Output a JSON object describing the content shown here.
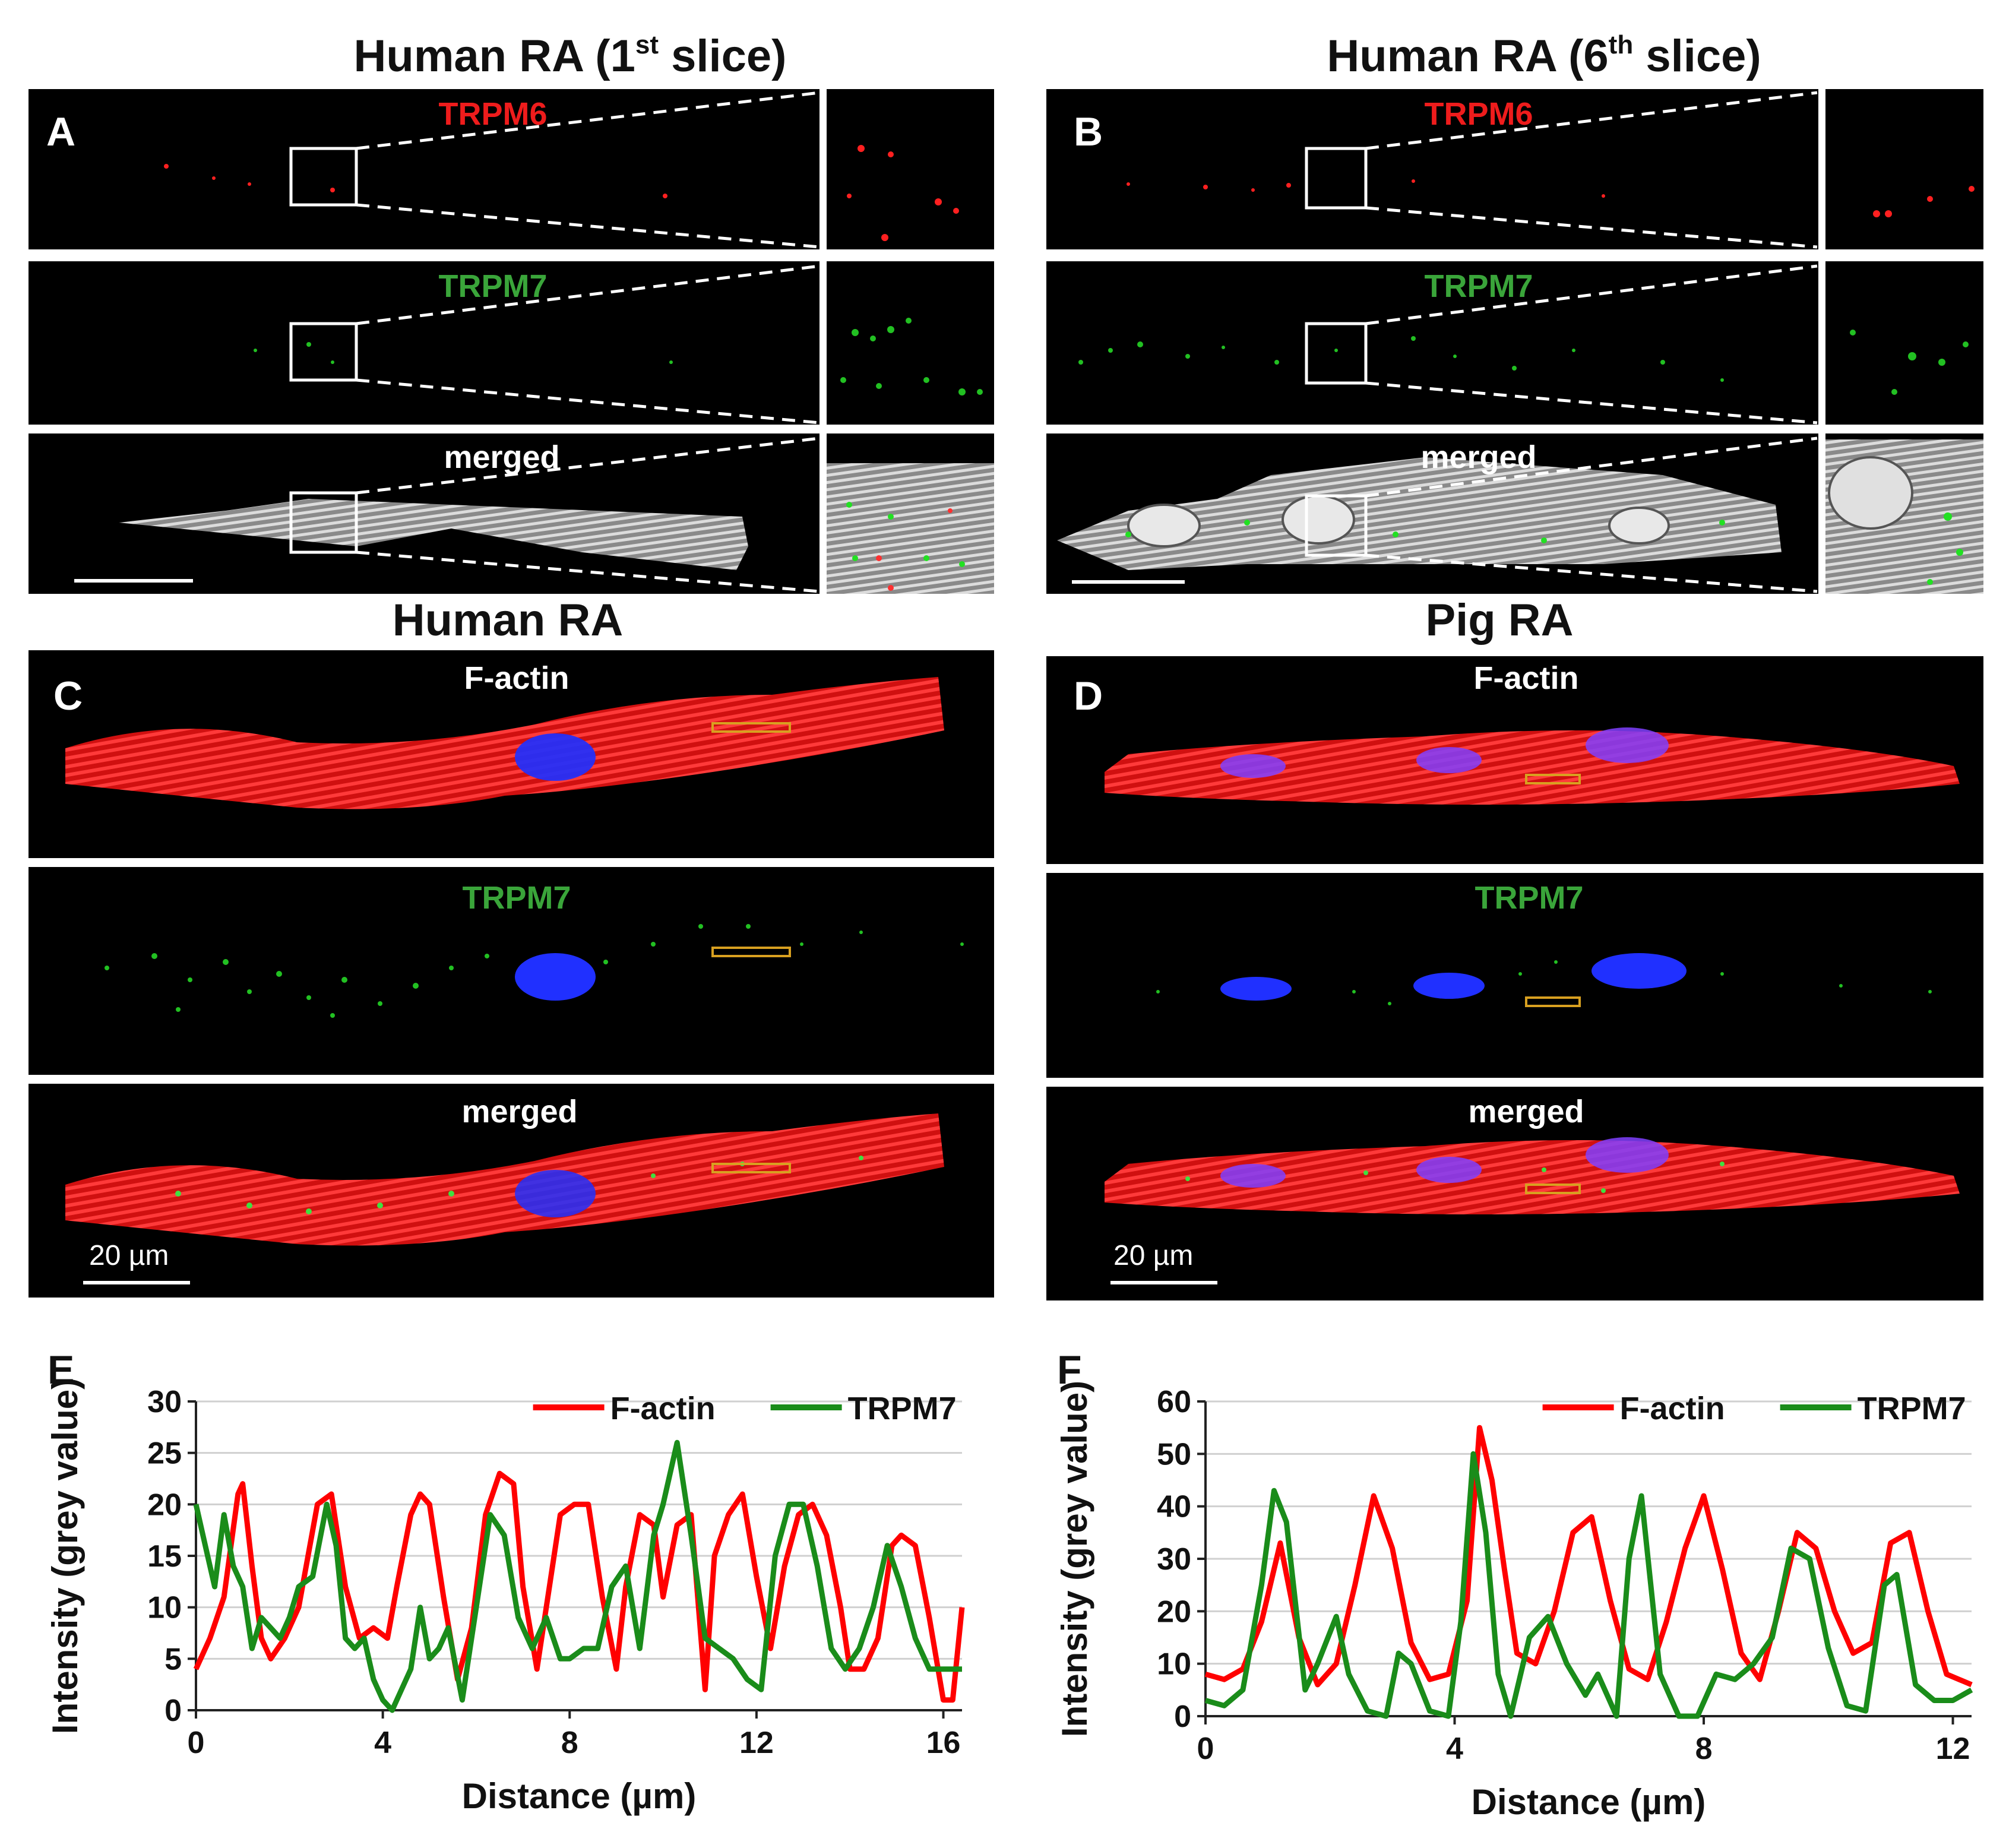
{
  "panelA": {
    "letter": "A",
    "title_main": "Human RA (1",
    "title_sup": "st",
    "title_end": " slice)",
    "row_labels": [
      "TRPM6",
      "TRPM7",
      "merged"
    ]
  },
  "panelB": {
    "letter": "B",
    "title_main": "Human RA (6",
    "title_sup": "th",
    "title_end": " slice)",
    "row_labels": [
      "TRPM6",
      "TRPM7",
      "merged"
    ]
  },
  "panelC": {
    "letter": "C",
    "title": "Human RA",
    "row_labels": [
      "F-actin",
      "TRPM7",
      "merged"
    ],
    "scale_label": "20 µm"
  },
  "panelD": {
    "letter": "D",
    "title": "Pig RA",
    "row_labels": [
      "F-actin",
      "TRPM7",
      "merged"
    ],
    "scale_label": "20 µm"
  },
  "colors": {
    "red_label": "#ee1c1c",
    "green_label": "#3aa53a",
    "white": "#ffffff",
    "actin": "#e01515",
    "nucleus": "#2030ff",
    "trpm7": "#22c022",
    "trpm6": "#ff2020"
  },
  "chart_data": [
    {
      "type": "line",
      "letter": "E",
      "xlabel": "Distance (µm)",
      "ylabel": "Intensity (grey value)",
      "xlim": [
        0,
        16.4
      ],
      "ylim": [
        0,
        30
      ],
      "xticks": [
        0,
        4,
        8,
        12,
        16
      ],
      "yticks": [
        0,
        5,
        10,
        15,
        20,
        25,
        30
      ],
      "legend_position": "top-right",
      "series": [
        {
          "name": "F-actin",
          "color": "#ff0000",
          "x": [
            0,
            0.3,
            0.6,
            0.9,
            1.0,
            1.2,
            1.4,
            1.6,
            1.9,
            2.2,
            2.6,
            2.9,
            3.2,
            3.5,
            3.8,
            4.1,
            4.3,
            4.6,
            4.8,
            5.0,
            5.3,
            5.6,
            5.9,
            6.2,
            6.5,
            6.8,
            7.0,
            7.3,
            7.6,
            7.8,
            8.1,
            8.4,
            8.7,
            9.0,
            9.2,
            9.5,
            9.8,
            10.0,
            10.3,
            10.6,
            10.9,
            11.1,
            11.4,
            11.7,
            12.0,
            12.3,
            12.6,
            12.9,
            13.2,
            13.5,
            13.8,
            14.0,
            14.3,
            14.6,
            14.9,
            15.1,
            15.4,
            15.7,
            16.0,
            16.2,
            16.4
          ],
          "y": [
            4,
            7,
            11,
            21,
            22,
            14,
            7,
            5,
            7,
            10,
            20,
            21,
            12,
            7,
            8,
            7,
            12,
            19,
            21,
            20,
            11,
            3,
            8,
            19,
            23,
            22,
            12,
            4,
            13,
            19,
            20,
            20,
            11,
            4,
            12,
            19,
            18,
            11,
            18,
            19,
            2,
            15,
            19,
            21,
            13,
            6,
            14,
            19,
            20,
            17,
            10,
            4,
            4,
            7,
            16,
            17,
            16,
            9,
            1,
            1,
            10
          ]
        },
        {
          "name": "TRPM7",
          "color": "#1a8c1a",
          "x": [
            0,
            0.2,
            0.4,
            0.6,
            0.8,
            1.0,
            1.2,
            1.4,
            1.6,
            1.8,
            2.0,
            2.2,
            2.5,
            2.8,
            3.0,
            3.2,
            3.4,
            3.6,
            3.8,
            4.0,
            4.2,
            4.4,
            4.6,
            4.8,
            5.0,
            5.2,
            5.4,
            5.7,
            6.0,
            6.3,
            6.6,
            6.9,
            7.2,
            7.5,
            7.8,
            8.0,
            8.3,
            8.6,
            8.9,
            9.2,
            9.5,
            9.8,
            10.0,
            10.3,
            10.6,
            10.9,
            11.2,
            11.5,
            11.8,
            12.1,
            12.4,
            12.7,
            13.0,
            13.3,
            13.6,
            13.9,
            14.2,
            14.5,
            14.8,
            15.1,
            15.4,
            15.7,
            16.0,
            16.2,
            16.4
          ],
          "y": [
            20,
            16,
            12,
            19,
            14,
            12,
            6,
            9,
            8,
            7,
            9,
            12,
            13,
            20,
            16,
            7,
            6,
            7,
            3,
            1,
            0,
            2,
            4,
            10,
            5,
            6,
            8,
            1,
            10,
            19,
            17,
            9,
            6,
            9,
            5,
            5,
            6,
            6,
            12,
            14,
            6,
            17,
            20,
            26,
            17,
            7,
            6,
            5,
            3,
            2,
            15,
            20,
            20,
            14,
            6,
            4,
            6,
            10,
            16,
            12,
            7,
            4,
            4,
            4,
            4
          ]
        }
      ]
    },
    {
      "type": "line",
      "letter": "F",
      "xlabel": "Distance (µm)",
      "ylabel": "Intensity (grey value)",
      "xlim": [
        0,
        12.3
      ],
      "ylim": [
        0,
        60
      ],
      "xticks": [
        0,
        4,
        8,
        12
      ],
      "yticks": [
        0,
        10,
        20,
        30,
        40,
        50,
        60
      ],
      "legend_position": "top-right",
      "series": [
        {
          "name": "F-actin",
          "color": "#ff0000",
          "x": [
            0,
            0.3,
            0.6,
            0.9,
            1.2,
            1.5,
            1.8,
            2.1,
            2.4,
            2.7,
            3.0,
            3.3,
            3.6,
            3.9,
            4.2,
            4.4,
            4.6,
            4.8,
            5.0,
            5.3,
            5.6,
            5.9,
            6.2,
            6.5,
            6.8,
            7.1,
            7.4,
            7.7,
            8.0,
            8.3,
            8.6,
            8.9,
            9.2,
            9.5,
            9.8,
            10.1,
            10.4,
            10.7,
            11.0,
            11.3,
            11.6,
            11.9,
            12.3
          ],
          "y": [
            8,
            7,
            9,
            18,
            33,
            15,
            6,
            10,
            25,
            42,
            32,
            14,
            7,
            8,
            22,
            55,
            45,
            28,
            12,
            10,
            20,
            35,
            38,
            22,
            9,
            7,
            18,
            32,
            42,
            28,
            12,
            7,
            20,
            35,
            32,
            20,
            12,
            14,
            33,
            35,
            20,
            8,
            6
          ]
        },
        {
          "name": "TRPM7",
          "color": "#1a8c1a",
          "x": [
            0,
            0.3,
            0.6,
            0.9,
            1.1,
            1.3,
            1.6,
            1.8,
            2.1,
            2.3,
            2.6,
            2.9,
            3.1,
            3.3,
            3.6,
            3.9,
            4.1,
            4.3,
            4.5,
            4.7,
            4.9,
            5.2,
            5.5,
            5.8,
            6.1,
            6.3,
            6.6,
            6.8,
            7.0,
            7.3,
            7.6,
            7.9,
            8.2,
            8.5,
            8.8,
            9.1,
            9.4,
            9.7,
            10.0,
            10.3,
            10.6,
            10.9,
            11.1,
            11.4,
            11.7,
            12.0,
            12.3
          ],
          "y": [
            3,
            2,
            5,
            25,
            43,
            37,
            5,
            10,
            19,
            8,
            1,
            0,
            12,
            10,
            1,
            0,
            18,
            50,
            35,
            8,
            0,
            15,
            19,
            10,
            4,
            8,
            0,
            30,
            42,
            8,
            0,
            0,
            8,
            7,
            10,
            15,
            32,
            30,
            13,
            2,
            1,
            25,
            27,
            6,
            3,
            3,
            5
          ]
        }
      ]
    }
  ]
}
